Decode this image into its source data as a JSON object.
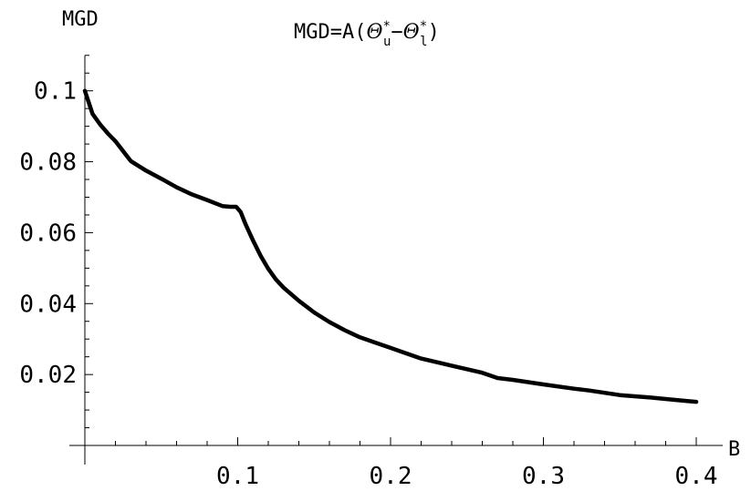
{
  "chart_data": {
    "type": "line",
    "title_parts": {
      "prefix": "MGD=A(",
      "theta": "Θ",
      "star": "*",
      "sub_u": "u",
      "minus": "−",
      "sub_l": "l",
      "suffix": ")"
    },
    "xlabel": "B",
    "ylabel": "MGD",
    "xlim": [
      0,
      0.4
    ],
    "ylim": [
      -0.02,
      0.11
    ],
    "x_ticks": [
      {
        "value": 0.1,
        "label": "0.1"
      },
      {
        "value": 0.2,
        "label": "0.2"
      },
      {
        "value": 0.3,
        "label": "0.3"
      },
      {
        "value": 0.4,
        "label": "0.4"
      }
    ],
    "y_ticks": [
      {
        "value": 0.02,
        "label": "0.02"
      },
      {
        "value": 0.04,
        "label": "0.04"
      },
      {
        "value": 0.06,
        "label": "0.06"
      },
      {
        "value": 0.08,
        "label": "0.08"
      },
      {
        "value": 0.1,
        "label": "0.1"
      }
    ],
    "grid": false,
    "series": [
      {
        "color": "#000000",
        "x": [
          0.0,
          0.005,
          0.01,
          0.015,
          0.02,
          0.03,
          0.04,
          0.05,
          0.06,
          0.07,
          0.08,
          0.09,
          0.095,
          0.099,
          0.1,
          0.102,
          0.105,
          0.11,
          0.115,
          0.12,
          0.125,
          0.13,
          0.14,
          0.15,
          0.16,
          0.17,
          0.18,
          0.19,
          0.2,
          0.21,
          0.22,
          0.24,
          0.26,
          0.27,
          0.28,
          0.3,
          0.32,
          0.33,
          0.35,
          0.37,
          0.39,
          0.4
        ],
        "y": [
          0.1,
          0.0935,
          0.0905,
          0.088,
          0.0858,
          0.0802,
          0.0775,
          0.0752,
          0.0728,
          0.0708,
          0.0692,
          0.0675,
          0.0673,
          0.0673,
          0.0668,
          0.0658,
          0.0625,
          0.0578,
          0.0535,
          0.0498,
          0.0468,
          0.0445,
          0.0408,
          0.0375,
          0.0348,
          0.0325,
          0.0305,
          0.029,
          0.0275,
          0.026,
          0.0245,
          0.0225,
          0.0205,
          0.019,
          0.0185,
          0.0172,
          0.016,
          0.0155,
          0.0142,
          0.0135,
          0.0127,
          0.0123
        ]
      }
    ]
  }
}
